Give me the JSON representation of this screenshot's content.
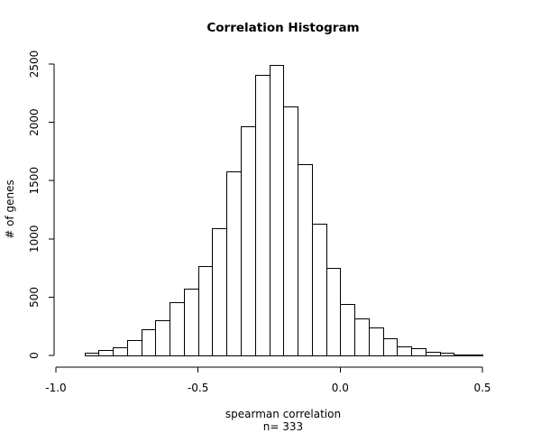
{
  "chart_data": {
    "type": "histogram",
    "title": "Correlation Histogram",
    "xlabel": "spearman correlation",
    "xlabel2": "n= 333",
    "ylabel": "# of genes",
    "bin_width": 0.05,
    "bin_edges": [
      -0.95,
      -0.9,
      -0.85,
      -0.8,
      -0.75,
      -0.7,
      -0.65,
      -0.6,
      -0.55,
      -0.5,
      -0.45,
      -0.4,
      -0.35,
      -0.3,
      -0.25,
      -0.2,
      -0.15,
      -0.1,
      -0.05,
      0.0,
      0.05,
      0.1,
      0.15,
      0.2,
      0.25,
      0.3,
      0.35,
      0.4,
      0.45,
      0.5
    ],
    "values": [
      3,
      20,
      50,
      70,
      130,
      225,
      305,
      460,
      575,
      765,
      1090,
      1580,
      1965,
      2405,
      2490,
      2135,
      1640,
      1130,
      750,
      445,
      320,
      240,
      150,
      80,
      60,
      30,
      20,
      10,
      5
    ],
    "xlim": [
      -1.0,
      0.5
    ],
    "ylim": [
      0,
      2500
    ],
    "x_ticks": [
      -1.0,
      -0.5,
      0.0,
      0.5
    ],
    "x_tick_labels": [
      "-1.0",
      "-0.5",
      "0.0",
      "0.5"
    ],
    "y_ticks": [
      0,
      500,
      1000,
      1500,
      2000,
      2500
    ],
    "y_tick_labels": [
      "0",
      "500",
      "1000",
      "1500",
      "2000",
      "2500"
    ],
    "grid": false
  }
}
